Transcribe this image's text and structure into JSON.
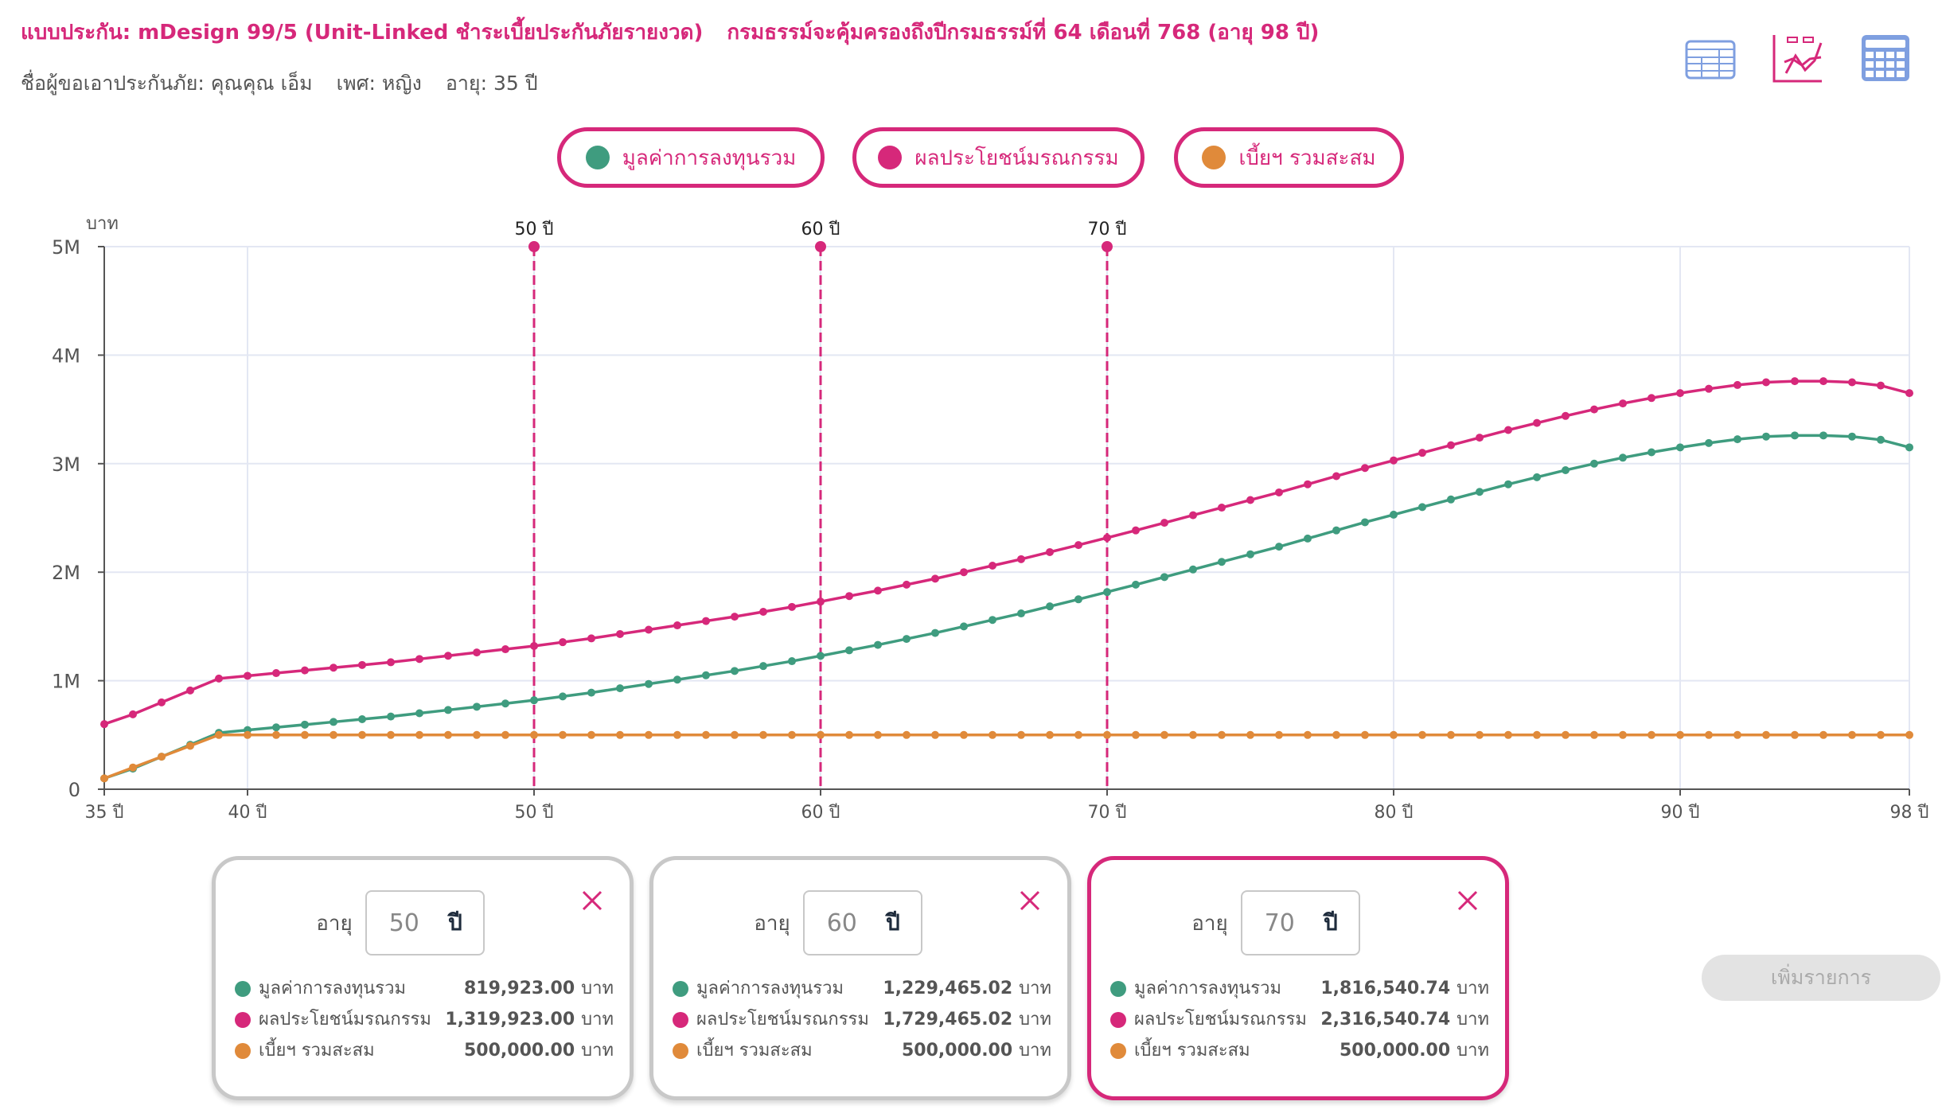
{
  "header": {
    "plan": "แบบประกัน: mDesign 99/5 (Unit-Linked ชำระเบี้ยประกันภัยรายงวด)",
    "coverage": "กรมธรรม์จะคุ้มครองถึงปีกรมธรรม์ที่ 64 เดือนที่ 768 (อายุ 98 ปี)",
    "insured": "ชื่อผู้ขอเอาประกันภัย: คุณคุณ เอ็ม",
    "gender": "เพศ: หญิง",
    "age": "อายุ: 35 ปี"
  },
  "toolbar": {
    "icons": [
      "table-icon",
      "line-chart-icon",
      "calculator-icon"
    ]
  },
  "colors": {
    "investment": "#3f9c7f",
    "death_benefit": "#d6287a",
    "premium": "#e08a3a"
  },
  "legend": [
    {
      "label": "มูลค่าการลงทุนรวม"
    },
    {
      "label": "ผลประโยชน์มรณกรรม"
    },
    {
      "label": "เบี้ยฯ รวมสะสม"
    }
  ],
  "chart_data": {
    "type": "line",
    "ylabel": "บาท",
    "ylim": [
      0,
      5000000
    ],
    "yticks": [
      "0",
      "1M",
      "2M",
      "3M",
      "4M",
      "5M"
    ],
    "xlim": [
      35,
      98
    ],
    "xticks": [
      {
        "v": 35,
        "l": "35 ปี"
      },
      {
        "v": 40,
        "l": "40 ปี"
      },
      {
        "v": 50,
        "l": "50 ปี"
      },
      {
        "v": 60,
        "l": "60 ปี"
      },
      {
        "v": 70,
        "l": "70 ปี"
      },
      {
        "v": 80,
        "l": "80 ปี"
      },
      {
        "v": 90,
        "l": "90 ปี"
      },
      {
        "v": 98,
        "l": "98 ปี"
      }
    ],
    "markers": [
      {
        "v": 50,
        "l": "50 ปี"
      },
      {
        "v": 60,
        "l": "60 ปี"
      },
      {
        "v": 70,
        "l": "70 ปี"
      }
    ],
    "x_start": 35,
    "series": [
      {
        "name": "มูลค่าการลงทุนรวม",
        "unit": "M",
        "values": [
          0.1,
          0.19,
          0.3,
          0.41,
          0.52,
          0.545,
          0.57,
          0.595,
          0.62,
          0.645,
          0.67,
          0.7,
          0.73,
          0.76,
          0.79,
          0.82,
          0.855,
          0.89,
          0.93,
          0.97,
          1.01,
          1.05,
          1.09,
          1.135,
          1.18,
          1.229,
          1.28,
          1.33,
          1.385,
          1.44,
          1.5,
          1.56,
          1.62,
          1.685,
          1.75,
          1.817,
          1.885,
          1.955,
          2.025,
          2.095,
          2.165,
          2.235,
          2.31,
          2.385,
          2.46,
          2.53,
          2.6,
          2.67,
          2.74,
          2.81,
          2.875,
          2.94,
          3.0,
          3.055,
          3.105,
          3.15,
          3.19,
          3.225,
          3.25,
          3.26,
          3.26,
          3.25,
          3.22,
          3.15
        ]
      },
      {
        "name": "ผลประโยชน์มรณกรรม",
        "unit": "M",
        "values": [
          0.6,
          0.69,
          0.8,
          0.91,
          1.02,
          1.045,
          1.07,
          1.095,
          1.12,
          1.145,
          1.17,
          1.2,
          1.23,
          1.26,
          1.29,
          1.32,
          1.355,
          1.39,
          1.43,
          1.47,
          1.51,
          1.55,
          1.59,
          1.635,
          1.68,
          1.729,
          1.78,
          1.83,
          1.885,
          1.94,
          2.0,
          2.06,
          2.12,
          2.185,
          2.25,
          2.317,
          2.385,
          2.455,
          2.525,
          2.595,
          2.665,
          2.735,
          2.81,
          2.885,
          2.96,
          3.03,
          3.1,
          3.17,
          3.24,
          3.31,
          3.375,
          3.44,
          3.5,
          3.555,
          3.605,
          3.65,
          3.69,
          3.725,
          3.75,
          3.76,
          3.76,
          3.75,
          3.72,
          3.65
        ]
      },
      {
        "name": "เบี้ยฯ รวมสะสม",
        "unit": "M",
        "values": [
          0.1,
          0.2,
          0.3,
          0.4,
          0.5,
          0.5,
          0.5,
          0.5,
          0.5,
          0.5,
          0.5,
          0.5,
          0.5,
          0.5,
          0.5,
          0.5,
          0.5,
          0.5,
          0.5,
          0.5,
          0.5,
          0.5,
          0.5,
          0.5,
          0.5,
          0.5,
          0.5,
          0.5,
          0.5,
          0.5,
          0.5,
          0.5,
          0.5,
          0.5,
          0.5,
          0.5,
          0.5,
          0.5,
          0.5,
          0.5,
          0.5,
          0.5,
          0.5,
          0.5,
          0.5,
          0.5,
          0.5,
          0.5,
          0.5,
          0.5,
          0.5,
          0.5,
          0.5,
          0.5,
          0.5,
          0.5,
          0.5,
          0.5,
          0.5,
          0.5,
          0.5,
          0.5,
          0.5,
          0.5
        ]
      }
    ]
  },
  "cards": [
    {
      "age_label": "อายุ",
      "age": "50",
      "unit": "ปี",
      "rows": [
        {
          "label": "มูลค่าการลงทุนรวม",
          "value": "819,923.00",
          "unit": "บาท"
        },
        {
          "label": "ผลประโยชน์มรณกรรม",
          "value": "1,319,923.00",
          "unit": "บาท"
        },
        {
          "label": "เบี้ยฯ รวมสะสม",
          "value": "500,000.00",
          "unit": "บาท"
        }
      ]
    },
    {
      "age_label": "อายุ",
      "age": "60",
      "unit": "ปี",
      "rows": [
        {
          "label": "มูลค่าการลงทุนรวม",
          "value": "1,229,465.02",
          "unit": "บาท"
        },
        {
          "label": "ผลประโยชน์มรณกรรม",
          "value": "1,729,465.02",
          "unit": "บาท"
        },
        {
          "label": "เบี้ยฯ รวมสะสม",
          "value": "500,000.00",
          "unit": "บาท"
        }
      ]
    },
    {
      "age_label": "อายุ",
      "age": "70",
      "unit": "ปี",
      "rows": [
        {
          "label": "มูลค่าการลงทุนรวม",
          "value": "1,816,540.74",
          "unit": "บาท"
        },
        {
          "label": "ผลประโยชน์มรณกรรม",
          "value": "2,316,540.74",
          "unit": "บาท"
        },
        {
          "label": "เบี้ยฯ รวมสะสม",
          "value": "500,000.00",
          "unit": "บาท"
        }
      ]
    }
  ],
  "add_button": "เพิ่มรายการ"
}
